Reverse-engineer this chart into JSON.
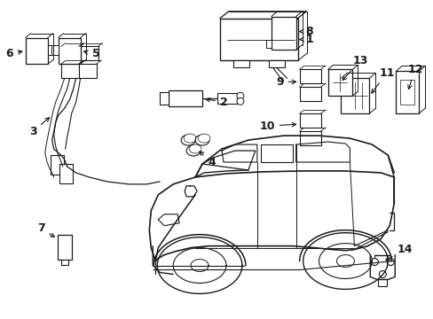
{
  "bg_color": "#ffffff",
  "line_color": "#1a1a1a",
  "label_color": "#000000",
  "label_fontsize": 9,
  "fig_width": 4.89,
  "fig_height": 3.6,
  "dpi": 100,
  "car": {
    "body_color": "#000000",
    "lw": 1.0
  }
}
